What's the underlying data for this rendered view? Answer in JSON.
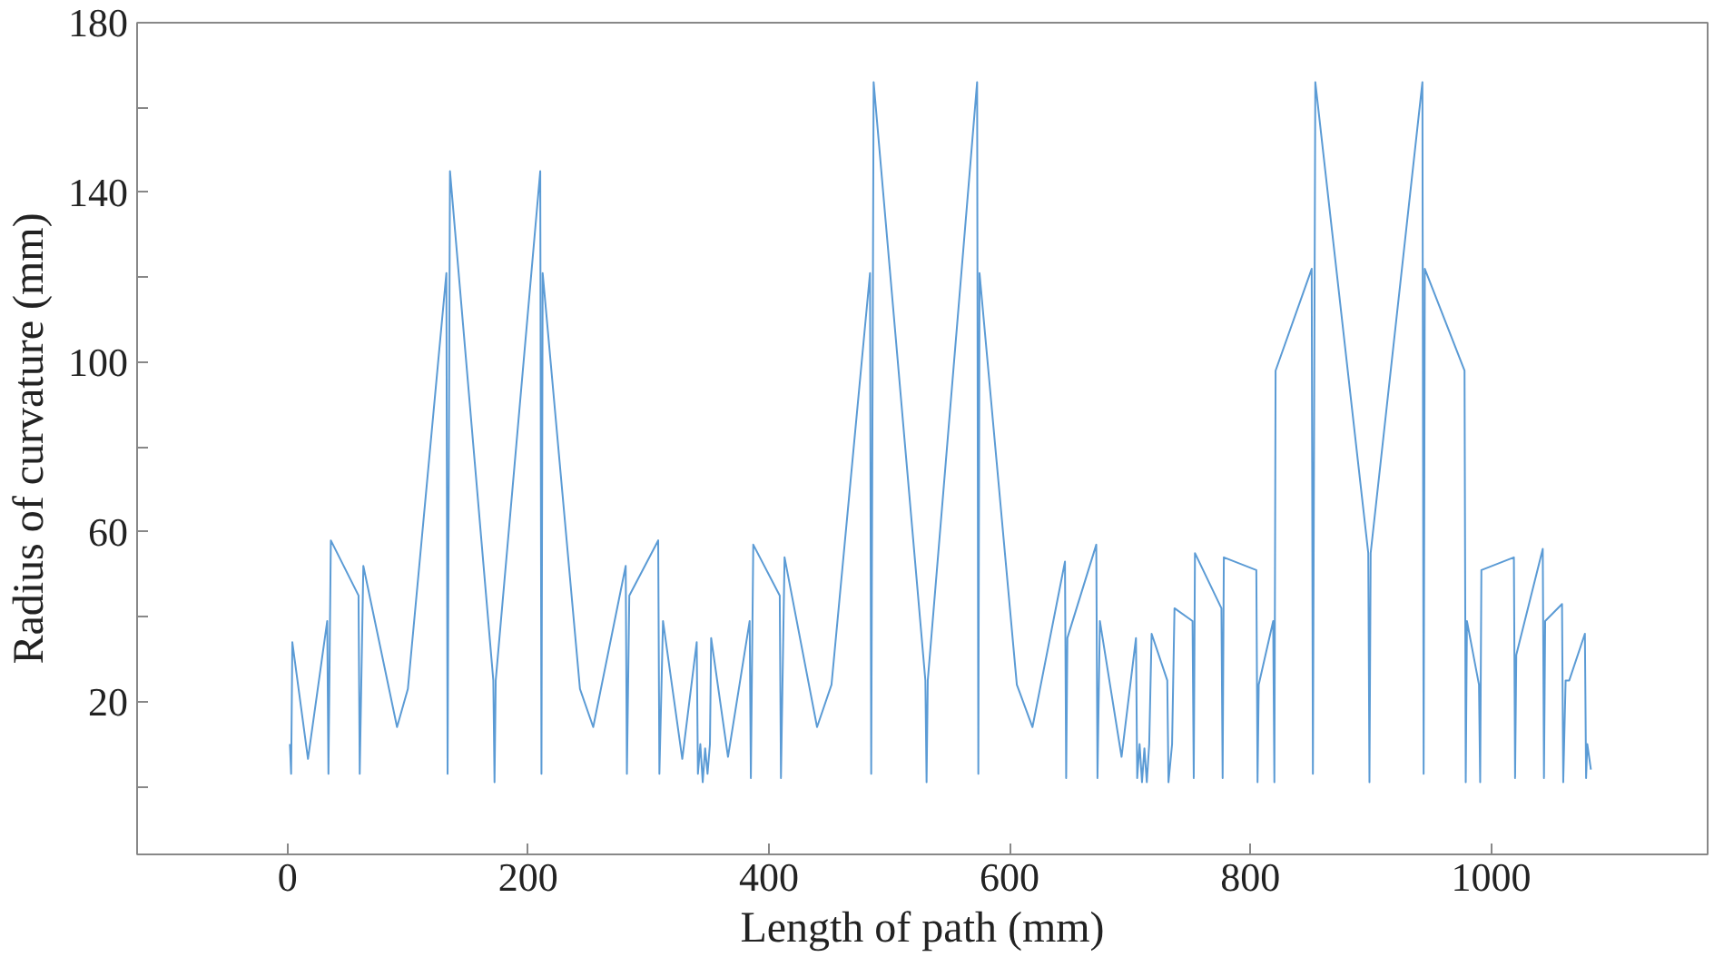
{
  "chart_data": {
    "type": "line",
    "xlabel": "Length of path (mm)",
    "ylabel": "Radius of curvature (mm)",
    "xlim": [
      -125,
      1180
    ],
    "ylim": [
      -16,
      180
    ],
    "xticks": [
      0,
      200,
      400,
      600,
      800,
      1000
    ],
    "yticks": [
      {
        "value": 0,
        "label": null
      },
      20,
      {
        "value": 40,
        "label": null
      },
      60,
      {
        "value": 80,
        "label": null
      },
      100,
      {
        "value": 120,
        "label": null
      },
      140,
      {
        "value": 160,
        "label": null
      },
      180
    ],
    "grid": false,
    "marker": "none",
    "line_style": "solid",
    "series": [
      {
        "color": "#5b9bd5",
        "x": [
          2,
          3,
          4,
          17,
          33,
          34,
          36,
          59,
          60,
          63,
          91,
          100,
          132,
          133,
          135,
          171,
          172,
          173,
          210,
          211,
          212,
          243,
          254,
          281,
          282,
          284,
          308,
          309,
          312,
          328,
          340,
          341,
          343,
          345,
          347,
          349,
          351,
          352,
          366,
          384,
          385,
          387,
          409,
          410,
          413,
          440,
          452,
          484,
          485,
          487,
          530,
          531,
          532,
          573,
          574,
          575,
          606,
          619,
          646,
          647,
          648,
          672,
          673,
          675,
          693,
          705,
          706,
          708,
          710,
          712,
          714,
          716,
          718,
          731,
          732,
          735,
          737,
          752,
          753,
          754,
          776,
          777,
          778,
          805,
          806,
          807,
          819,
          820,
          821,
          851,
          852,
          854,
          898,
          899,
          900,
          943,
          944,
          945,
          978,
          979,
          980,
          990,
          991,
          992,
          1019,
          1020,
          1021,
          1043,
          1044,
          1045,
          1059,
          1060,
          1062,
          1065,
          1078,
          1079,
          1080,
          1083
        ],
        "values": [
          10,
          3,
          34,
          6.5,
          39,
          3,
          58,
          45,
          3,
          52,
          14,
          23,
          121,
          3,
          145,
          25,
          1,
          25,
          145,
          3,
          121,
          23,
          14,
          52,
          3,
          45,
          58,
          3,
          39,
          6.5,
          34,
          3,
          10,
          1,
          9,
          3,
          10,
          35,
          7,
          39,
          2,
          57,
          45,
          2,
          54,
          14,
          24,
          121,
          3,
          166,
          25,
          1,
          25,
          166,
          3,
          121,
          24,
          14,
          53,
          2,
          35,
          57,
          2,
          39,
          7,
          35,
          2,
          10,
          1,
          9,
          1,
          10,
          36,
          25,
          1,
          10,
          42,
          39,
          2,
          55,
          42,
          2,
          54,
          51,
          1,
          24,
          39,
          1,
          98,
          122,
          3,
          166,
          55,
          1,
          55,
          166,
          3,
          122,
          98,
          1,
          39,
          24,
          1,
          51,
          54,
          2,
          31,
          56,
          2,
          39,
          43,
          1,
          25,
          25,
          36,
          2,
          10,
          4
        ]
      }
    ]
  }
}
